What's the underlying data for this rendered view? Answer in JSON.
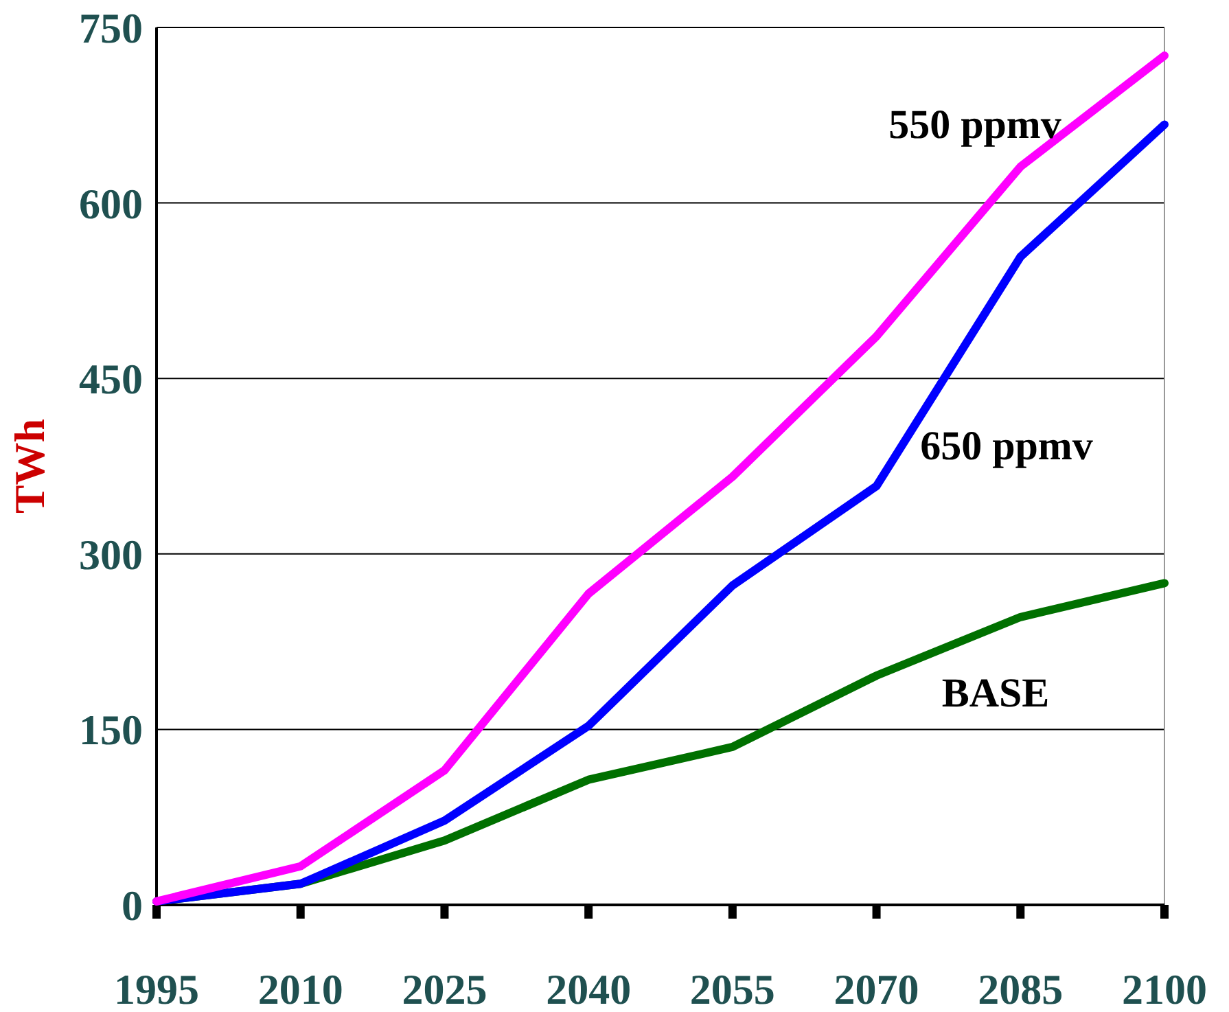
{
  "chart_data": {
    "type": "line",
    "ylabel": "TWh",
    "x": [
      1995,
      2010,
      2025,
      2040,
      2055,
      2070,
      2085,
      2100
    ],
    "xlim": [
      1995,
      2100
    ],
    "xticks": [
      1995,
      2010,
      2025,
      2040,
      2055,
      2070,
      2085,
      2100
    ],
    "ylim": [
      0,
      750
    ],
    "yticks": [
      0,
      150,
      300,
      450,
      600,
      750
    ],
    "grid": "y",
    "marker": "none",
    "line_style": "solid",
    "series": [
      {
        "name": "BASE",
        "color": "#007000",
        "values": [
          3,
          18,
          55,
          107,
          135,
          196,
          246,
          275
        ]
      },
      {
        "name": "650 ppmv",
        "color": "#0000ff",
        "values": [
          3,
          18,
          72,
          153,
          273,
          358,
          554,
          667
        ]
      },
      {
        "name": "550 ppmv",
        "color": "#ff00ff",
        "values": [
          3,
          33,
          115,
          266,
          366,
          486,
          631,
          726
        ]
      }
    ]
  }
}
